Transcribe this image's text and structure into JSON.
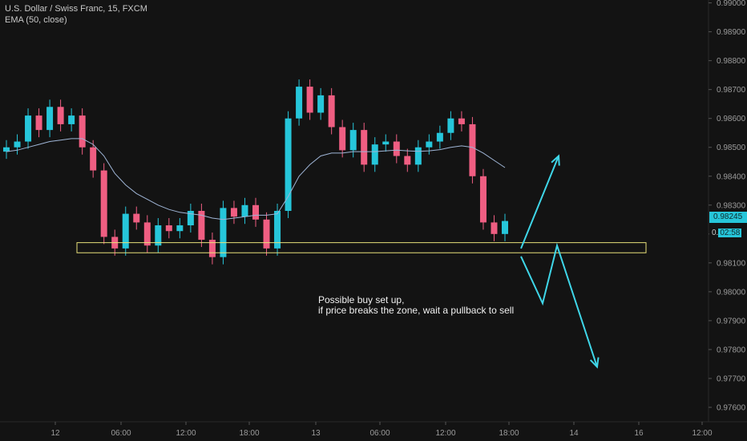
{
  "header": {
    "symbol_line": "U.S. Dollar / Swiss Franc, 15, FXCM",
    "indicator_line": "EMA (50, close)"
  },
  "annotation": {
    "line1": "Possible buy set up,",
    "line2": "if price breaks the zone, wait a pullback to sell"
  },
  "price_badges": {
    "last_price": "0.98245",
    "countdown": "02:58",
    "countdown_prefix": "0."
  },
  "colors": {
    "background": "#131313",
    "up_candle": "#26c6da",
    "down_candle": "#ef5e82",
    "ema_line": "#9fb5d6",
    "zone_border": "#e8e07a",
    "arrow": "#3fd6e8",
    "grid": "#1c1c1c",
    "axis_text": "#9c9c9c"
  },
  "chart_data": {
    "type": "candlestick",
    "title": "U.S. Dollar / Swiss Franc, 15, FXCM",
    "indicator": "EMA (50, close)",
    "y_axis": {
      "side": "right",
      "range": [
        0.9755,
        0.9901
      ],
      "ticks": [
        "0.99000",
        "0.98900",
        "0.98800",
        "0.98700",
        "0.98600",
        "0.98500",
        "0.98400",
        "0.98300",
        "0.98200",
        "0.98100",
        "0.98000",
        "0.97900",
        "0.97800",
        "0.97700",
        "0.97600"
      ]
    },
    "x_axis": {
      "ticks": [
        "12",
        "06:00",
        "12:00",
        "18:00",
        "13",
        "06:00",
        "12:00",
        "18:00",
        "14",
        "16",
        "12:00"
      ]
    },
    "grid": false,
    "price_path_high_low_sketch": [
      {
        "t": 0,
        "open": 0.98485,
        "close": 0.985
      },
      {
        "t": 1,
        "open": 0.985,
        "close": 0.9852
      },
      {
        "t": 2,
        "open": 0.9852,
        "close": 0.9861
      },
      {
        "t": 3,
        "open": 0.9861,
        "close": 0.9856
      },
      {
        "t": 4,
        "open": 0.9856,
        "close": 0.9864
      },
      {
        "t": 5,
        "open": 0.9864,
        "close": 0.9858
      },
      {
        "t": 6,
        "open": 0.9858,
        "close": 0.9861
      },
      {
        "t": 7,
        "open": 0.9861,
        "close": 0.985
      },
      {
        "t": 8,
        "open": 0.985,
        "close": 0.9842
      },
      {
        "t": 9,
        "open": 0.9842,
        "close": 0.9819
      },
      {
        "t": 10,
        "open": 0.9819,
        "close": 0.9815
      },
      {
        "t": 11,
        "open": 0.9815,
        "close": 0.9827
      },
      {
        "t": 12,
        "open": 0.9827,
        "close": 0.9824
      },
      {
        "t": 13,
        "open": 0.9824,
        "close": 0.9816
      },
      {
        "t": 14,
        "open": 0.9816,
        "close": 0.9823
      },
      {
        "t": 15,
        "open": 0.9823,
        "close": 0.9821
      },
      {
        "t": 16,
        "open": 0.9821,
        "close": 0.9823
      },
      {
        "t": 17,
        "open": 0.9823,
        "close": 0.9828
      },
      {
        "t": 18,
        "open": 0.9828,
        "close": 0.9818
      },
      {
        "t": 19,
        "open": 0.9818,
        "close": 0.9812
      },
      {
        "t": 20,
        "open": 0.9812,
        "close": 0.9829
      },
      {
        "t": 21,
        "open": 0.9829,
        "close": 0.9826
      },
      {
        "t": 22,
        "open": 0.9826,
        "close": 0.983
      },
      {
        "t": 23,
        "open": 0.983,
        "close": 0.9825
      },
      {
        "t": 24,
        "open": 0.9825,
        "close": 0.9815
      },
      {
        "t": 25,
        "open": 0.9815,
        "close": 0.9828
      },
      {
        "t": 26,
        "open": 0.9828,
        "close": 0.986
      },
      {
        "t": 27,
        "open": 0.986,
        "close": 0.9871
      },
      {
        "t": 28,
        "open": 0.9871,
        "close": 0.9862
      },
      {
        "t": 29,
        "open": 0.9862,
        "close": 0.9868
      },
      {
        "t": 30,
        "open": 0.9868,
        "close": 0.9857
      },
      {
        "t": 31,
        "open": 0.9857,
        "close": 0.9849
      },
      {
        "t": 32,
        "open": 0.9849,
        "close": 0.9856
      },
      {
        "t": 33,
        "open": 0.9856,
        "close": 0.9844
      },
      {
        "t": 34,
        "open": 0.9844,
        "close": 0.9851
      },
      {
        "t": 35,
        "open": 0.9851,
        "close": 0.9852
      },
      {
        "t": 36,
        "open": 0.9852,
        "close": 0.9847
      },
      {
        "t": 37,
        "open": 0.9847,
        "close": 0.9844
      },
      {
        "t": 38,
        "open": 0.9844,
        "close": 0.985
      },
      {
        "t": 39,
        "open": 0.985,
        "close": 0.9852
      },
      {
        "t": 40,
        "open": 0.9852,
        "close": 0.9855
      },
      {
        "t": 41,
        "open": 0.9855,
        "close": 0.986
      },
      {
        "t": 42,
        "open": 0.986,
        "close": 0.9858
      },
      {
        "t": 43,
        "open": 0.9858,
        "close": 0.984
      },
      {
        "t": 44,
        "open": 0.984,
        "close": 0.9824
      },
      {
        "t": 45,
        "open": 0.9824,
        "close": 0.982
      },
      {
        "t": 46,
        "open": 0.982,
        "close": 0.98245
      }
    ],
    "ema": [
      0.98485,
      0.9849,
      0.985,
      0.9851,
      0.9852,
      0.98525,
      0.9853,
      0.9853,
      0.9851,
      0.9847,
      0.9841,
      0.9837,
      0.9834,
      0.9832,
      0.983,
      0.98285,
      0.98275,
      0.9827,
      0.98265,
      0.98255,
      0.9825,
      0.98255,
      0.9826,
      0.98265,
      0.98265,
      0.9827,
      0.9833,
      0.984,
      0.9844,
      0.9847,
      0.9848,
      0.9848,
      0.98485,
      0.98485,
      0.98485,
      0.98488,
      0.9849,
      0.98488,
      0.98486,
      0.98488,
      0.98492,
      0.985,
      0.98505,
      0.985,
      0.9848,
      0.98455,
      0.9843
    ],
    "zone": {
      "low": 0.98135,
      "high": 0.9817,
      "label": ""
    },
    "projection_paths": [
      {
        "points": [
          [
            0.9815,
            "now"
          ],
          [
            0.9847,
            "+1"
          ]
        ]
      },
      {
        "points": [
          [
            0.9815,
            "now"
          ],
          [
            0.9796,
            "+0.5"
          ],
          [
            0.9816,
            "+1"
          ],
          [
            0.9774,
            "+2"
          ]
        ]
      }
    ],
    "last_price": 0.98245
  }
}
